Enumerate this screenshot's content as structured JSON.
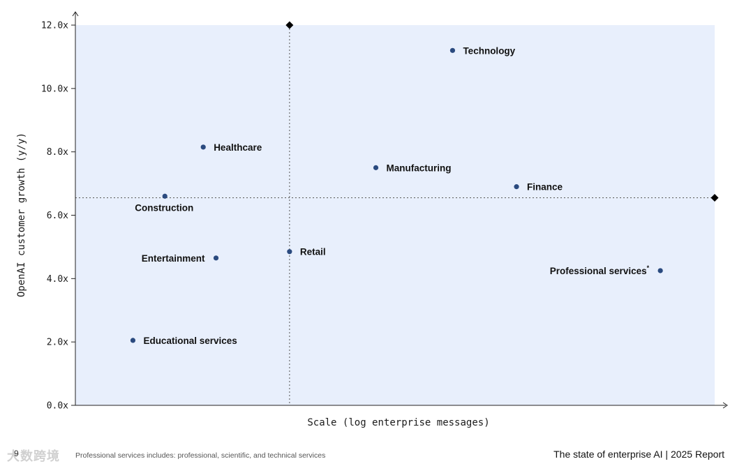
{
  "chart_data": {
    "type": "scatter",
    "xlabel": "Scale (log enterprise messages)",
    "ylabel": "OpenAI customer growth (y/y)",
    "ylim": [
      0,
      12
    ],
    "y_ticks": [
      {
        "value": 0,
        "label": "0.0x"
      },
      {
        "value": 2,
        "label": "2.0x"
      },
      {
        "value": 4,
        "label": "4.0x"
      },
      {
        "value": 6,
        "label": "6.0x"
      },
      {
        "value": 8,
        "label": "8.0x"
      },
      {
        "value": 10,
        "label": "10.0x"
      },
      {
        "value": 12,
        "label": "12.0x"
      }
    ],
    "x_scale": "log",
    "x_ticks_shown": false,
    "grid": false,
    "point_color": "#2a4a7f",
    "background_color": "#e8effc",
    "points": [
      {
        "label": "Technology",
        "x": 0.59,
        "y": 11.2,
        "label_side": "right"
      },
      {
        "label": "Healthcare",
        "x": 0.2,
        "y": 8.15,
        "label_side": "right"
      },
      {
        "label": "Manufacturing",
        "x": 0.47,
        "y": 7.5,
        "label_side": "right"
      },
      {
        "label": "Finance",
        "x": 0.69,
        "y": 6.9,
        "label_side": "right"
      },
      {
        "label": "Construction",
        "x": 0.14,
        "y": 6.6,
        "label_side": "below"
      },
      {
        "label": "Retail",
        "x": 0.335,
        "y": 4.85,
        "label_side": "right"
      },
      {
        "label": "Entertainment",
        "x": 0.22,
        "y": 4.65,
        "label_side": "left"
      },
      {
        "label": "Professional services",
        "x": 0.915,
        "y": 4.25,
        "label_side": "left",
        "superscript": "*"
      },
      {
        "label": "Educational services",
        "x": 0.09,
        "y": 2.05,
        "label_side": "right"
      }
    ],
    "reference_lines": {
      "vertical_x": 0.335,
      "horizontal_y": 6.55
    }
  },
  "footer": {
    "page_number": "9",
    "note": "Professional services includes: professional, scientific, and technical services",
    "report": "The state of enterprise AI  |  2025 Report"
  },
  "watermark": "大数跨境"
}
